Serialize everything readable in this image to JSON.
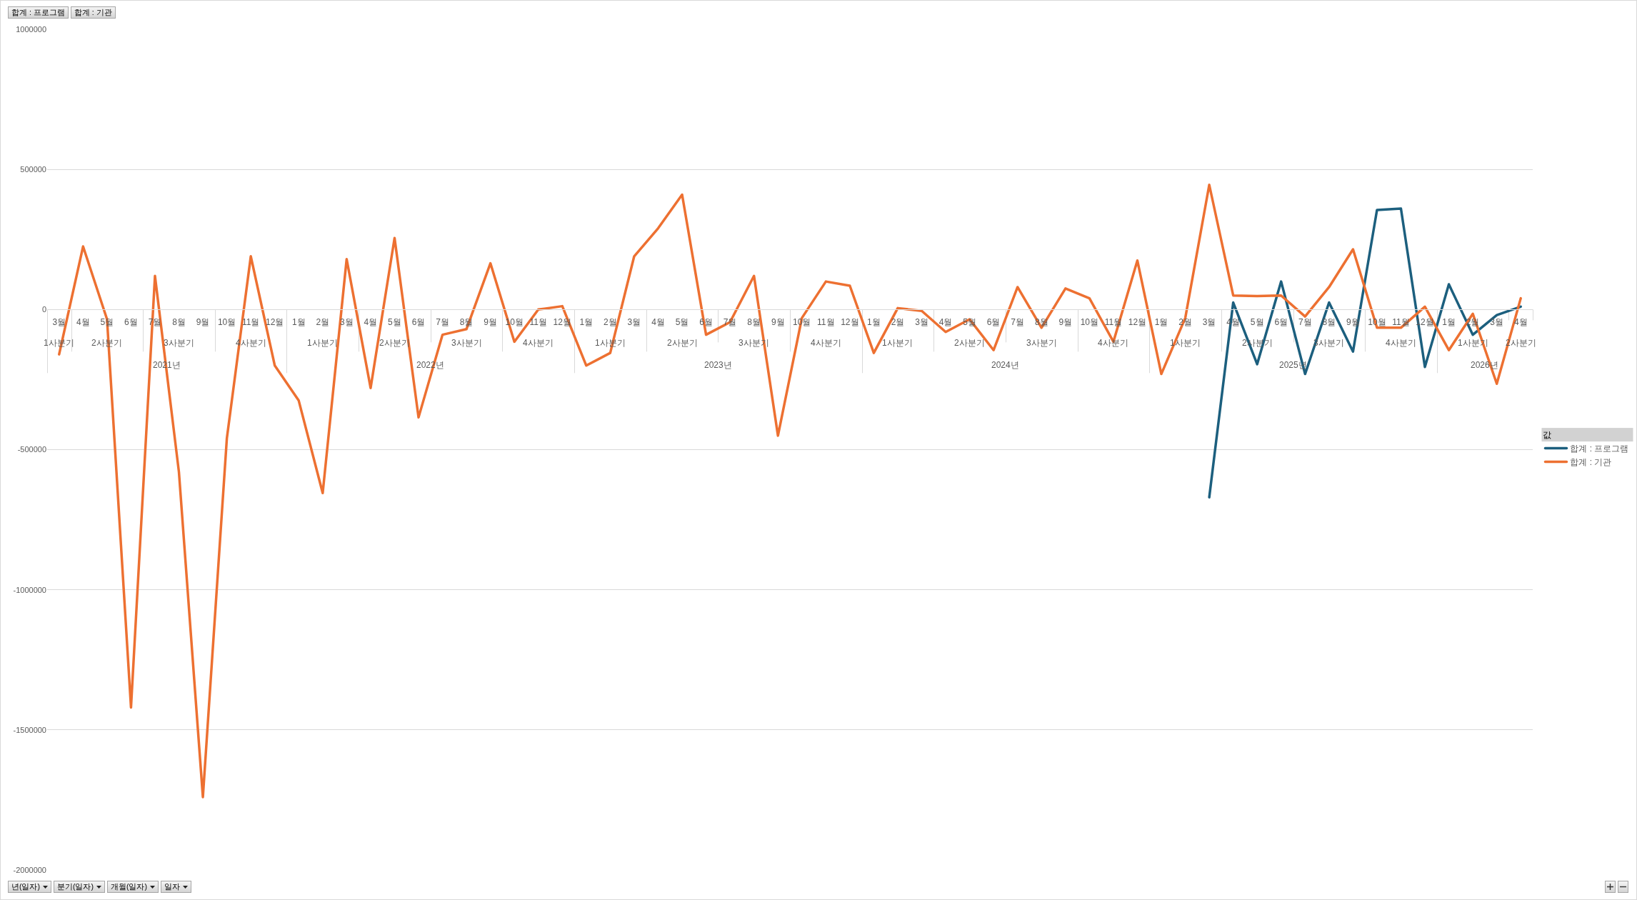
{
  "chart_data": {
    "type": "line",
    "categories": [
      "3월",
      "4월",
      "5월",
      "6월",
      "7월",
      "8월",
      "9월",
      "10월",
      "11월",
      "12월",
      "1월",
      "2월",
      "3월",
      "4월",
      "5월",
      "6월",
      "7월",
      "8월",
      "9월",
      "10월",
      "11월",
      "12월",
      "1월",
      "2월",
      "3월",
      "4월",
      "5월",
      "6월",
      "7월",
      "8월",
      "9월",
      "10월",
      "11월",
      "12월",
      "1월",
      "2월",
      "3월",
      "4월",
      "5월",
      "6월",
      "7월",
      "8월",
      "9월",
      "10월",
      "11월",
      "12월",
      "1월",
      "2월",
      "3월",
      "4월",
      "5월",
      "6월",
      "7월",
      "8월",
      "9월",
      "10월",
      "11월",
      "12월",
      "1월",
      "2월",
      "3월",
      "4월"
    ],
    "series": [
      {
        "name": "합계 : 프로그램",
        "color": "#1c5f7e",
        "values": [
          null,
          null,
          null,
          null,
          null,
          null,
          null,
          null,
          null,
          null,
          null,
          null,
          null,
          null,
          null,
          null,
          null,
          null,
          null,
          null,
          null,
          null,
          null,
          null,
          null,
          null,
          null,
          null,
          null,
          null,
          null,
          null,
          null,
          null,
          null,
          null,
          null,
          null,
          null,
          null,
          null,
          null,
          null,
          null,
          null,
          null,
          null,
          null,
          -670000,
          25000,
          -195000,
          100000,
          -230000,
          25000,
          -150000,
          355000,
          360000,
          -205000,
          90000,
          -90000,
          -20000,
          10000
        ]
      },
      {
        "name": "합계 : 기관",
        "color": "#ed7031",
        "values": [
          -160000,
          225000,
          -35000,
          -1420000,
          120000,
          -580000,
          -1740000,
          -460000,
          190000,
          -200000,
          -325000,
          -655000,
          180000,
          -280000,
          255000,
          -385000,
          -90000,
          -70000,
          165000,
          -115000,
          0,
          12000,
          -200000,
          -155000,
          190000,
          290000,
          410000,
          -90000,
          -45000,
          120000,
          -450000,
          -30000,
          100000,
          85000,
          -155000,
          5000,
          -5000,
          -80000,
          -35000,
          -145000,
          80000,
          -65000,
          75000,
          40000,
          -115000,
          175000,
          -230000,
          -30000,
          445000,
          50000,
          48000,
          50000,
          -25000,
          80000,
          215000,
          -65000,
          -65000,
          10000,
          -145000,
          -15000,
          -265000,
          40000
        ]
      }
    ],
    "ylim": [
      -2000000,
      1000000
    ],
    "yticks": [
      -2000000,
      -1500000,
      -1000000,
      -500000,
      0,
      500000,
      1000000
    ],
    "grid": "y",
    "legend": "right",
    "legend_title": "값",
    "annotations": [
      {
        "text": "1사분기",
        "x": "3월"
      },
      "2사분기",
      "3사분기",
      "4사분기",
      "1사분기",
      "2사분기",
      "3사분기",
      "4사분기",
      "1사분기",
      "2사분기",
      "3사분기",
      "4사분기",
      "1사분기",
      "2사분기",
      "3사분기",
      "4사분기",
      "1사분기",
      "2사분기",
      "3사분기",
      "4사분기",
      "1사분기",
      "2사분기",
      "2021년",
      "2022년",
      "2023년",
      "2024년",
      "2025년",
      "2026년",
      "년(일자)",
      "분기(일자)",
      "개월(일자)",
      "일자"
    ]
  }
}
